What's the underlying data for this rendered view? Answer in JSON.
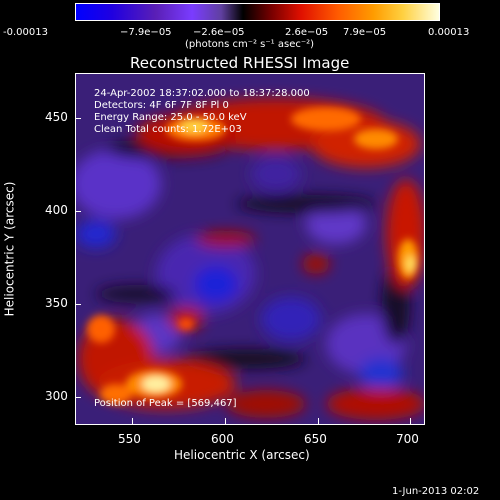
{
  "colorbar": {
    "ticks": [
      "-0.00013",
      "−7.9e−05",
      "−2.6e−05",
      "2.6e−05",
      "7.9e−05",
      "0.00013"
    ],
    "units": "(photons cm⁻² s⁻¹ asec⁻²)"
  },
  "title": "Reconstructed RHESSI Image",
  "info": {
    "line1": "24-Apr-2002 18:37:02.000 to 18:37:28.000",
    "line2": "Detectors: 4F 6F 7F 8F Pl 0",
    "line3": "Energy Range: 25.0 - 50.0 keV",
    "line4": "Clean    Total counts: 1.72E+03"
  },
  "peak": "Position of Peak = [569,467]",
  "axes": {
    "xlabel": "Heliocentric X (arcsec)",
    "ylabel": "Heliocentric Y (arcsec)",
    "xticks": [
      "550",
      "600",
      "650",
      "700"
    ],
    "yticks": [
      "450",
      "400",
      "350",
      "300"
    ]
  },
  "date": "1-Jun-2013 02:02",
  "colors": {
    "background": "#000000",
    "foreground": "#ffffff"
  }
}
